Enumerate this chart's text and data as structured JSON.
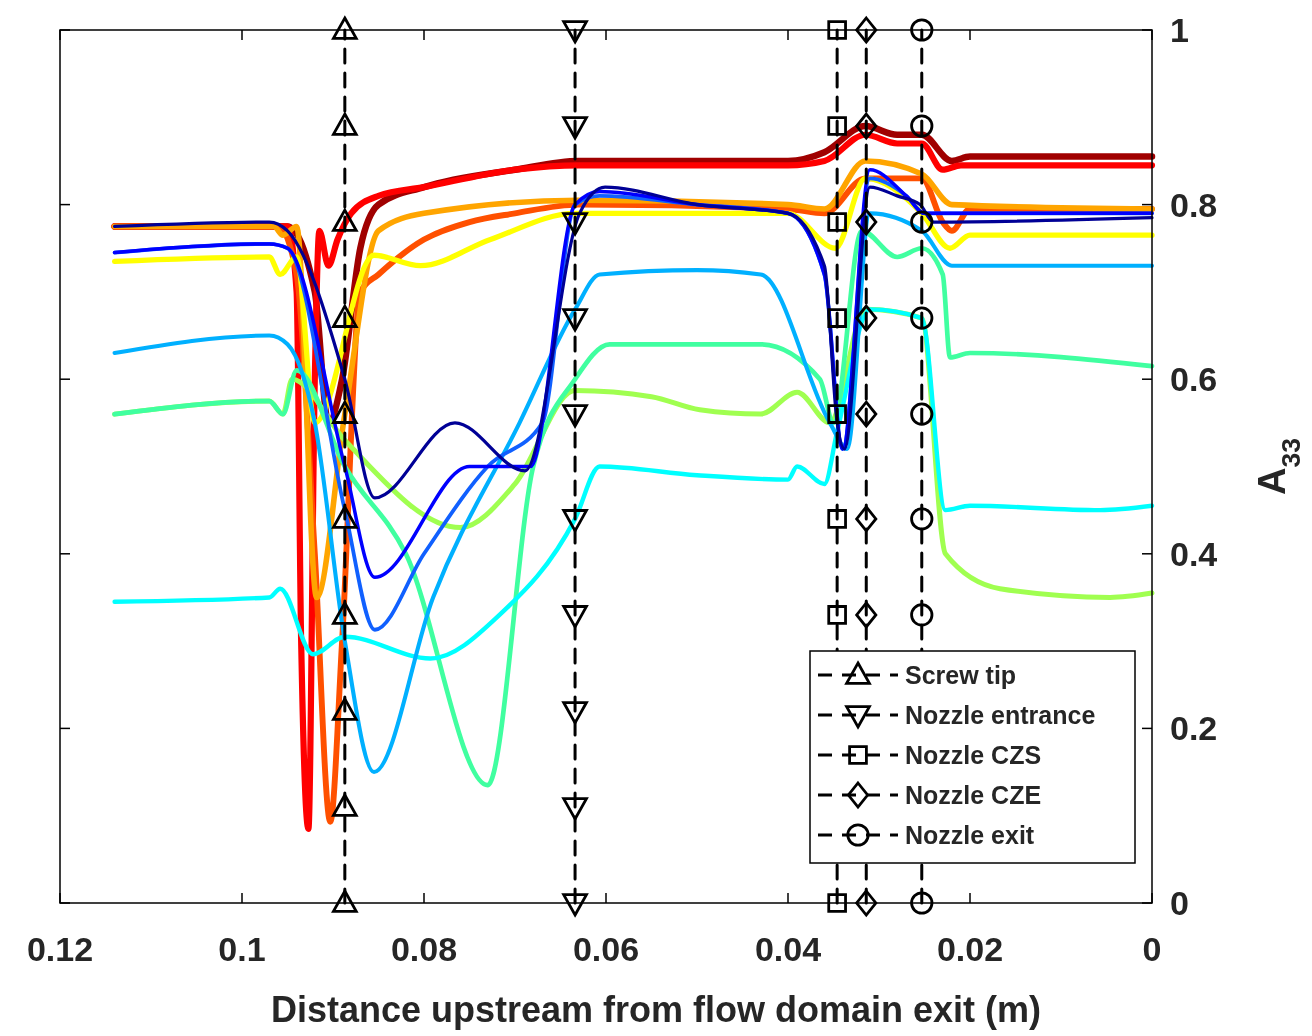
{
  "chart_data": {
    "type": "line",
    "xlabel": "Distance upstream from flow domain exit (m)",
    "ylabel": "A$_{33}$",
    "xlim": [
      0.12,
      0
    ],
    "xticks": [
      0.12,
      0.1,
      0.08,
      0.06,
      0.04,
      0.02,
      0
    ],
    "ylim": [
      0,
      1
    ],
    "yticks": [
      0,
      0.2,
      0.4,
      0.6,
      0.8,
      1
    ],
    "legend": "bottom right",
    "series": [
      {
        "color": "#a00000",
        "x": [
          0.114,
          0.095,
          0.092,
          0.0905,
          0.089,
          0.087,
          0.085,
          0.08,
          0.07,
          0.063,
          0.04,
          0.036,
          0.0315,
          0.028,
          0.0253,
          0.022,
          0.02,
          0
        ],
        "values": [
          0.775,
          0.775,
          0.7,
          0.55,
          0.6,
          0.75,
          0.8,
          0.82,
          0.84,
          0.85,
          0.85,
          0.86,
          0.89,
          0.88,
          0.88,
          0.85,
          0.855,
          0.855
        ]
      },
      {
        "color": "#ff0000",
        "x": [
          0.114,
          0.095,
          0.094,
          0.0935,
          0.0927,
          0.092,
          0.0915,
          0.0905,
          0.0895,
          0.088,
          0.085,
          0.08,
          0.07,
          0.063,
          0.04,
          0.036,
          0.0315,
          0.028,
          0.0253,
          0.023,
          0.021,
          0
        ],
        "values": [
          0.775,
          0.775,
          0.7,
          0.3,
          0.085,
          0.6,
          0.77,
          0.73,
          0.76,
          0.79,
          0.81,
          0.82,
          0.84,
          0.845,
          0.845,
          0.85,
          0.88,
          0.87,
          0.87,
          0.84,
          0.845,
          0.845
        ]
      },
      {
        "color": "#ff5000",
        "x": [
          0.114,
          0.096,
          0.094,
          0.092,
          0.0903,
          0.089,
          0.087,
          0.085,
          0.08,
          0.075,
          0.07,
          0.063,
          0.04,
          0.036,
          0.0315,
          0.0253,
          0.023,
          0.022,
          0.02,
          0
        ],
        "values": [
          0.775,
          0.775,
          0.72,
          0.4,
          0.093,
          0.3,
          0.7,
          0.72,
          0.76,
          0.78,
          0.79,
          0.8,
          0.795,
          0.79,
          0.83,
          0.83,
          0.78,
          0.77,
          0.795,
          0.795
        ]
      },
      {
        "color": "#ffa500",
        "x": [
          0.114,
          0.0965,
          0.0955,
          0.094,
          0.0918,
          0.0887,
          0.085,
          0.08,
          0.063,
          0.04,
          0.036,
          0.0315,
          0.0253,
          0.022,
          0
        ],
        "values": [
          0.775,
          0.775,
          0.765,
          0.775,
          0.35,
          0.56,
          0.77,
          0.79,
          0.805,
          0.8,
          0.795,
          0.85,
          0.835,
          0.8,
          0.795
        ]
      },
      {
        "color": "#ffff00",
        "x": [
          0.114,
          0.097,
          0.0958,
          0.094,
          0.092,
          0.0855,
          0.0804,
          0.0727,
          0.0634,
          0.04,
          0.0348,
          0.0315,
          0.0253,
          0.0222,
          0.02,
          0
        ],
        "values": [
          0.735,
          0.74,
          0.72,
          0.74,
          0.55,
          0.742,
          0.73,
          0.76,
          0.79,
          0.79,
          0.75,
          0.83,
          0.79,
          0.75,
          0.765,
          0.765
        ]
      },
      {
        "color": "#a0ff50",
        "x": [
          0.114,
          0.097,
          0.0955,
          0.0945,
          0.0887,
          0.076,
          0.07,
          0.0634,
          0.055,
          0.0497,
          0.043,
          0.039,
          0.0354,
          0.0315,
          0.0253,
          0.0227,
          0.0167,
          0.0046,
          0
        ],
        "values": [
          0.56,
          0.575,
          0.56,
          0.6,
          0.53,
          0.43,
          0.48,
          0.587,
          0.58,
          0.565,
          0.56,
          0.585,
          0.55,
          0.68,
          0.67,
          0.4,
          0.36,
          0.35,
          0.355
        ]
      },
      {
        "color": "#40ffa0",
        "x": [
          0.114,
          0.097,
          0.0955,
          0.094,
          0.0887,
          0.082,
          0.073,
          0.068,
          0.0634,
          0.0596,
          0.043,
          0.0365,
          0.035,
          0.0319,
          0.028,
          0.0253,
          0.023,
          0.0222,
          0.02,
          0
        ],
        "values": [
          0.56,
          0.575,
          0.56,
          0.61,
          0.5,
          0.4,
          0.135,
          0.5,
          0.6,
          0.64,
          0.64,
          0.6,
          0.55,
          0.77,
          0.74,
          0.75,
          0.72,
          0.625,
          0.63,
          0.615
        ]
      },
      {
        "color": "#00ffff",
        "x": [
          0.114,
          0.097,
          0.0958,
          0.0922,
          0.0887,
          0.0793,
          0.0717,
          0.0634,
          0.0607,
          0.05,
          0.04,
          0.039,
          0.036,
          0.0346,
          0.031,
          0.0253,
          0.0227,
          0.02,
          0.0057,
          0
        ],
        "values": [
          0.345,
          0.35,
          0.36,
          0.285,
          0.305,
          0.28,
          0.33,
          0.44,
          0.5,
          0.49,
          0.485,
          0.5,
          0.48,
          0.54,
          0.68,
          0.67,
          0.45,
          0.455,
          0.45,
          0.455
        ]
      },
      {
        "color": "#00b0ff",
        "x": [
          0.114,
          0.097,
          0.095,
          0.092,
          0.0887,
          0.0855,
          0.079,
          0.0695,
          0.0634,
          0.0607,
          0.05,
          0.043,
          0.0354,
          0.0335,
          0.031,
          0.0253,
          0.022,
          0
        ],
        "values": [
          0.63,
          0.65,
          0.64,
          0.55,
          0.3,
          0.15,
          0.35,
          0.55,
          0.68,
          0.72,
          0.725,
          0.72,
          0.55,
          0.52,
          0.79,
          0.77,
          0.73,
          0.73
        ]
      },
      {
        "color": "#1060ff",
        "x": [
          0.114,
          0.097,
          0.095,
          0.0887,
          0.0854,
          0.08,
          0.073,
          0.067,
          0.0634,
          0.0607,
          0.05,
          0.04,
          0.036,
          0.034,
          0.031,
          0.027,
          0.025,
          0
        ],
        "values": [
          0.745,
          0.755,
          0.75,
          0.45,
          0.313,
          0.4,
          0.5,
          0.55,
          0.8,
          0.81,
          0.8,
          0.79,
          0.72,
          0.52,
          0.83,
          0.81,
          0.79,
          0.79
        ]
      },
      {
        "color": "#0000ff",
        "x": [
          0.114,
          0.097,
          0.095,
          0.0887,
          0.0854,
          0.075,
          0.0683,
          0.0634,
          0.0607,
          0.05,
          0.04,
          0.036,
          0.034,
          0.031,
          0.027,
          0.025,
          0
        ],
        "values": [
          0.745,
          0.755,
          0.75,
          0.5,
          0.373,
          0.5,
          0.5,
          0.8,
          0.815,
          0.8,
          0.79,
          0.72,
          0.52,
          0.84,
          0.81,
          0.79,
          0.79
        ]
      },
      {
        "color": "#000096",
        "x": [
          0.114,
          0.097,
          0.095,
          0.0887,
          0.0854,
          0.0766,
          0.0689,
          0.0629,
          0.0601,
          0.05,
          0.04,
          0.036,
          0.0346,
          0.0338,
          0.031,
          0.028,
          0.0255,
          0.024,
          0
        ],
        "values": [
          0.775,
          0.78,
          0.77,
          0.6,
          0.464,
          0.55,
          0.495,
          0.79,
          0.82,
          0.8,
          0.79,
          0.73,
          0.55,
          0.52,
          0.82,
          0.81,
          0.8,
          0.78,
          0.785
        ]
      },
      {
        "name": "Screw tip",
        "color": "#000000",
        "marker": "triangle",
        "line_style": "dashed",
        "x": [
          0.0887,
          0.0887,
          0.0887,
          0.0887,
          0.0887,
          0.0887,
          0.0887,
          0.0887,
          0.0887,
          0.0887
        ],
        "values": [
          0,
          0.11,
          0.22,
          0.33,
          0.44,
          0.56,
          0.67,
          0.78,
          0.89,
          1
        ]
      },
      {
        "name": "Nozzle entrance",
        "color": "#000000",
        "marker": "triangle-down",
        "line_style": "dashed",
        "x": [
          0.0634,
          0.0634,
          0.0634,
          0.0634,
          0.0634,
          0.0634,
          0.0634,
          0.0634,
          0.0634,
          0.0634
        ],
        "values": [
          0,
          0.11,
          0.22,
          0.33,
          0.44,
          0.56,
          0.67,
          0.78,
          0.89,
          1
        ]
      },
      {
        "name": "Nozzle CZS",
        "color": "#000000",
        "marker": "square",
        "line_style": "dashed",
        "x": [
          0.0346,
          0.0346,
          0.0346,
          0.0346,
          0.0346,
          0.0346,
          0.0346,
          0.0346
        ],
        "values": [
          0,
          0.33,
          0.44,
          0.56,
          0.67,
          0.78,
          0.89,
          1
        ]
      },
      {
        "name": "Nozzle CZE",
        "color": "#000000",
        "marker": "diamond",
        "line_style": "dashed",
        "x": [
          0.0314,
          0.0314,
          0.0314,
          0.0314,
          0.0314,
          0.0314,
          0.0314,
          0.0314
        ],
        "values": [
          0,
          0.33,
          0.44,
          0.56,
          0.67,
          0.78,
          0.89,
          1
        ]
      },
      {
        "name": "Nozzle exit",
        "color": "#000000",
        "marker": "circle",
        "line_style": "dashed",
        "x": [
          0.0253,
          0.0253,
          0.0253,
          0.0253,
          0.0253,
          0.0253,
          0.0253,
          0.0253
        ],
        "values": [
          0,
          0.33,
          0.44,
          0.56,
          0.67,
          0.78,
          0.89,
          1
        ]
      }
    ]
  }
}
